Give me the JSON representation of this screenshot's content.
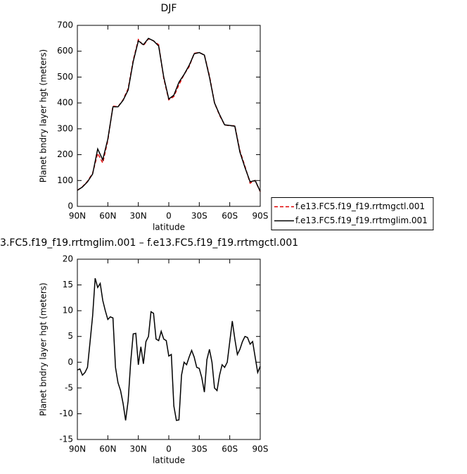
{
  "chart_data": [
    {
      "type": "line",
      "title": "DJF",
      "x_label": "latitude",
      "y_label": "Planet bndry layer hgt (meters)",
      "xlim": [
        90,
        -90
      ],
      "xticks": [
        {
          "value": 90,
          "label": "90N"
        },
        {
          "value": 60,
          "label": "60N"
        },
        {
          "value": 30,
          "label": "30N"
        },
        0,
        {
          "value": -30,
          "label": "30S"
        },
        {
          "value": -60,
          "label": "60S"
        },
        {
          "value": -90,
          "label": "90S"
        }
      ],
      "ylim": [
        0,
        700
      ],
      "yticks": [
        0,
        100,
        200,
        300,
        400,
        500,
        600,
        700
      ],
      "legend": "right",
      "x": [
        90,
        85,
        80,
        75,
        70,
        65,
        60,
        55,
        50,
        45,
        40,
        35,
        30,
        25,
        20,
        15,
        10,
        5,
        0,
        -5,
        -10,
        -15,
        -20,
        -25,
        -30,
        -35,
        -40,
        -45,
        -50,
        -55,
        -60,
        -65,
        -70,
        -75,
        -80,
        -85,
        -90
      ],
      "series": [
        {
          "name": "f.e13.FC5.f19_f19.rrtmgctl.001",
          "color": "#e00000",
          "line_style": "dashed",
          "values": [
            62,
            76,
            97,
            128,
            205,
            168,
            255,
            388,
            385,
            412,
            455,
            565,
            645,
            622,
            648,
            640,
            625,
            495,
            412,
            425,
            470,
            510,
            540,
            592,
            595,
            585,
            505,
            400,
            352,
            315,
            312,
            312,
            215,
            155,
            90,
            100,
            57
          ]
        },
        {
          "name": "f.e13.FC5.f19_f19.rrtmglim.001",
          "color": "#000000",
          "line_style": "solid",
          "values": [
            62,
            75,
            95,
            125,
            222,
            180,
            260,
            385,
            385,
            410,
            450,
            560,
            640,
            625,
            650,
            640,
            620,
            500,
            415,
            430,
            480,
            510,
            545,
            590,
            595,
            585,
            500,
            400,
            355,
            315,
            313,
            310,
            210,
            150,
            95,
            100,
            58
          ]
        }
      ]
    },
    {
      "type": "line",
      "title": "3.FC5.f19_f19.rrtmglim.001 – f.e13.FC5.f19_f19.rrtmgctl.001",
      "x_label": "latitude",
      "y_label": "Planet bndry layer hgt (meters)",
      "xlim": [
        90,
        -90
      ],
      "xticks": [
        {
          "value": 90,
          "label": "90N"
        },
        {
          "value": 60,
          "label": "60N"
        },
        {
          "value": 30,
          "label": "30N"
        },
        0,
        {
          "value": -30,
          "label": "30S"
        },
        {
          "value": -60,
          "label": "60S"
        },
        {
          "value": -90,
          "label": "90S"
        }
      ],
      "ylim": [
        -15,
        20
      ],
      "yticks": [
        -15,
        -10,
        -5,
        0,
        5,
        10,
        15,
        20
      ],
      "x": [
        90,
        87.5,
        85,
        82.5,
        80,
        77.5,
        75,
        72.5,
        70,
        67.5,
        65,
        62.5,
        60,
        57.5,
        55,
        52.5,
        50,
        47.5,
        45,
        42.5,
        40,
        37.5,
        35,
        32.5,
        30,
        27.5,
        25,
        22.5,
        20,
        17.5,
        15,
        12.5,
        10,
        7.5,
        5,
        2.5,
        0,
        -2.5,
        -5,
        -7.5,
        -10,
        -12.5,
        -15,
        -17.5,
        -20,
        -22.5,
        -25,
        -27.5,
        -30,
        -32.5,
        -35,
        -37.5,
        -40,
        -42.5,
        -45,
        -47.5,
        -50,
        -52.5,
        -55,
        -57.5,
        -60,
        -62.5,
        -65,
        -67.5,
        -70,
        -72.5,
        -75,
        -77.5,
        -80,
        -82.5,
        -85,
        -87.5,
        -90
      ],
      "series": [
        {
          "color": "#000000",
          "line_style": "solid",
          "values": [
            -1.5,
            -1.3,
            -2.5,
            -2,
            -1,
            4,
            9,
            16.3,
            14.5,
            15.3,
            12,
            10,
            8.3,
            8.8,
            8.6,
            -1,
            -4,
            -5.5,
            -8,
            -11.3,
            -7.5,
            0,
            5.5,
            5.6,
            -0.5,
            3,
            -0.3,
            4,
            5,
            9.8,
            9.5,
            4.5,
            4.2,
            6,
            4.5,
            4.2,
            1.2,
            1.5,
            -8.5,
            -11.3,
            -11.2,
            -2.5,
            0,
            -0.5,
            1,
            2.3,
            1,
            -1,
            -1.2,
            -3,
            -5.8,
            0.5,
            2.5,
            0,
            -5,
            -5.5,
            -2.5,
            -0.5,
            -1,
            0,
            4,
            8,
            4.5,
            1.5,
            2.5,
            4,
            5,
            4.8,
            3.5,
            4,
            1,
            -2,
            -0.8
          ]
        }
      ]
    }
  ]
}
